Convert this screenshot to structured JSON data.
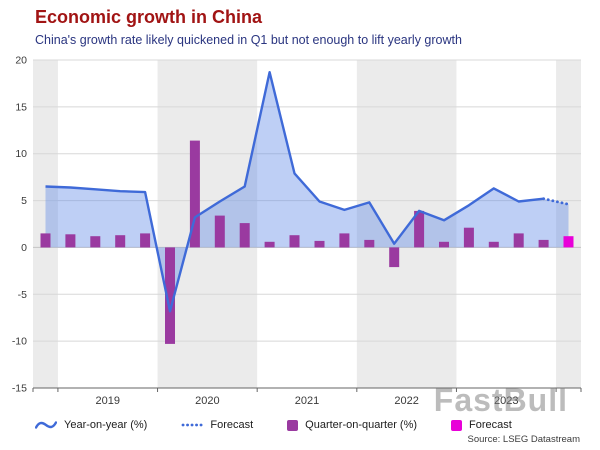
{
  "title": "Economic growth in China",
  "subtitle": "China's growth rate likely quickened in Q1 but not enough to lift yearly growth",
  "source": "Source: LSEG Datastream",
  "watermark": "FastBull",
  "colors": {
    "title": "#a11414",
    "subtitle": "#2a3580",
    "line": "#3f6ad8",
    "area_fill": "rgba(100,140,230,0.42)",
    "bar": "#9a3aa0",
    "forecast_bar": "#e800d8",
    "band": "#ebebeb",
    "grid": "#d8d8d8",
    "grid_zero": "#c4c4c4",
    "axis": "#666666",
    "tick_text": "#3a3a3a"
  },
  "legend": [
    {
      "label": "Year-on-year (%)",
      "swatch": "line"
    },
    {
      "label": "Forecast",
      "swatch": "dotted-line"
    },
    {
      "label": "Quarter-on-quarter (%)",
      "swatch": "square-bar"
    },
    {
      "label": "Forecast",
      "swatch": "square-forecast"
    }
  ],
  "chart_data": {
    "type": "combo: area-line + bar",
    "x_quarters": [
      "2018 Q4",
      "2019 Q1",
      "2019 Q2",
      "2019 Q3",
      "2019 Q4",
      "2020 Q1",
      "2020 Q2",
      "2020 Q3",
      "2020 Q4",
      "2021 Q1",
      "2021 Q2",
      "2021 Q3",
      "2021 Q4",
      "2022 Q1",
      "2022 Q2",
      "2022 Q3",
      "2022 Q4",
      "2023 Q1",
      "2023 Q2",
      "2023 Q3",
      "2023 Q4",
      "2024 Q1"
    ],
    "year_axis_labels": [
      "2019",
      "2020",
      "2021",
      "2022",
      "2023"
    ],
    "shaded_years": [
      "2018",
      "2020",
      "2022",
      "2024"
    ],
    "ylim": [
      -15,
      20
    ],
    "yticks": [
      20,
      15,
      10,
      5,
      0,
      -5,
      -10,
      -15
    ],
    "grid": true,
    "legend_position": "bottom",
    "forecast_start_index": 21,
    "series": [
      {
        "name": "Year-on-year (%)",
        "type": "line-area",
        "values": [
          6.5,
          6.4,
          6.2,
          6.0,
          5.9,
          -6.8,
          3.2,
          4.9,
          6.5,
          18.7,
          7.9,
          4.9,
          4.0,
          4.8,
          0.4,
          3.9,
          2.9,
          4.5,
          6.3,
          4.9,
          5.2,
          4.6
        ]
      },
      {
        "name": "Quarter-on-quarter (%)",
        "type": "bar",
        "values": [
          1.5,
          1.4,
          1.2,
          1.3,
          1.5,
          -10.3,
          11.4,
          3.4,
          2.6,
          0.6,
          1.3,
          0.7,
          1.5,
          0.8,
          -2.1,
          3.9,
          0.6,
          2.1,
          0.6,
          1.5,
          0.8,
          1.2
        ]
      }
    ]
  }
}
